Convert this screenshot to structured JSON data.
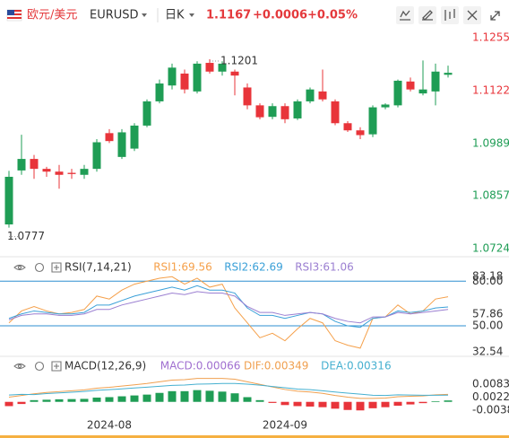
{
  "header": {
    "symbol_cn": "欧元/美元",
    "symbol": "EURUSD",
    "period": "日K",
    "price": "1.1167",
    "change": "+0.0006",
    "change_pct": "+0.05%"
  },
  "chart_data": [
    {
      "type": "candlestick",
      "open": [
        1.0785,
        1.0921,
        1.095,
        1.0925,
        1.0918,
        1.0915,
        1.091,
        1.0925,
        1.1015,
        1.0955,
        1.0976,
        1.1034,
        1.1095,
        1.1135,
        1.1165,
        1.112,
        1.1192,
        1.117,
        1.117,
        1.113,
        1.1085,
        1.1056,
        1.1083,
        1.1052,
        1.1095,
        1.112,
        1.1095,
        1.104,
        1.1022,
        1.1012,
        1.108,
        1.1085,
        1.1145,
        1.1115,
        1.112,
        1.1162
      ],
      "high": [
        1.092,
        1.1011,
        1.096,
        1.093,
        1.0935,
        1.0925,
        1.0935,
        1.1,
        1.1025,
        1.1025,
        1.104,
        1.11,
        1.115,
        1.119,
        1.1175,
        1.1196,
        1.1201,
        1.1196,
        1.1175,
        1.114,
        1.109,
        1.109,
        1.109,
        1.11,
        1.113,
        1.1175,
        1.11,
        1.1045,
        1.103,
        1.1085,
        1.109,
        1.115,
        1.1155,
        1.1198,
        1.119,
        1.1185
      ],
      "low": [
        1.0777,
        1.091,
        1.09,
        1.0905,
        1.0875,
        1.09,
        1.09,
        1.0918,
        1.099,
        1.095,
        1.097,
        1.103,
        1.109,
        1.1125,
        1.1115,
        1.1115,
        1.1165,
        1.116,
        1.111,
        1.1075,
        1.105,
        1.105,
        1.104,
        1.1048,
        1.109,
        1.1095,
        1.1035,
        1.1018,
        1.1,
        1.1005,
        1.1075,
        1.108,
        1.112,
        1.111,
        1.1085,
        1.1155
      ],
      "close": [
        1.0905,
        1.095,
        1.0925,
        1.0918,
        1.091,
        1.0912,
        1.0925,
        1.0992,
        1.0995,
        1.1017,
        1.1034,
        1.1095,
        1.114,
        1.118,
        1.1125,
        1.119,
        1.117,
        1.119,
        1.116,
        1.1085,
        1.1055,
        1.1083,
        1.105,
        1.1095,
        1.1125,
        1.11,
        1.104,
        1.1022,
        1.101,
        1.108,
        1.1087,
        1.1147,
        1.1125,
        1.1125,
        1.117,
        1.1167
      ],
      "up_color": "#1f9d55",
      "down_color": "#e8343a",
      "ylim": [
        1.0706,
        1.1278
      ],
      "yticks": [
        1.0724,
        1.0857,
        1.0989,
        1.1122,
        1.1255
      ],
      "ytick_colors": [
        "#1f9d55",
        "#1f9d55",
        "#1f9d55",
        "#e8343a",
        "#e8343a"
      ],
      "annotations": [
        {
          "value": 1.1201,
          "index": 16
        },
        {
          "value": 1.0777,
          "index": 0
        }
      ]
    },
    {
      "type": "line",
      "title": "RSI(7,14,21)",
      "series": [
        {
          "name": "RSI1:69.56",
          "color": "#f5a04a",
          "values": [
            52,
            60,
            63,
            60,
            58,
            59,
            61,
            70,
            68,
            74,
            78,
            80,
            82,
            83,
            78,
            82,
            76,
            78,
            62,
            52,
            42,
            45,
            40,
            48,
            55,
            52,
            40,
            37,
            35,
            55,
            56,
            64,
            58,
            60,
            68,
            69.56
          ]
        },
        {
          "name": "RSI2:62.69",
          "color": "#3aa0d8",
          "values": [
            55,
            58,
            60,
            59,
            58,
            58,
            59,
            64,
            64,
            67,
            70,
            72,
            74,
            76,
            74,
            77,
            74,
            74,
            72,
            62,
            57,
            57,
            55,
            57,
            59,
            58,
            53,
            50,
            49,
            55,
            56,
            60,
            59,
            60,
            62,
            62.69
          ]
        },
        {
          "name": "RSI3:61.06",
          "color": "#9b7fd1",
          "values": [
            54,
            57,
            58,
            58,
            57,
            57,
            58,
            61,
            61,
            64,
            66,
            68,
            70,
            72,
            71,
            73,
            72,
            72,
            70,
            63,
            59,
            59,
            57,
            58,
            59,
            58,
            55,
            53,
            52,
            56,
            56,
            59,
            58,
            59,
            60,
            61.06
          ]
        }
      ],
      "ylim": [
        32.54,
        83.18
      ],
      "yticks": [
        32.54,
        {
          "value": 50,
          "label": "50.00"
        },
        57.86,
        {
          "value": 80,
          "label": "80.00"
        },
        83.18
      ],
      "ref_lines": [
        80,
        50
      ],
      "ref_color": "#2f8fd0"
    },
    {
      "type": "macd",
      "title": "MACD(12,26,9)",
      "series": [
        {
          "name": "MACD:0.00066",
          "color": "#a06fd0",
          "up_color": "#1f9d55",
          "down_color": "#e8343a",
          "kind": "bar",
          "values": [
            -0.002,
            -0.001,
            0.0008,
            0.001,
            0.0012,
            0.0013,
            0.0014,
            0.002,
            0.0022,
            0.0026,
            0.003,
            0.0034,
            0.0042,
            0.005,
            0.005,
            0.0055,
            0.0052,
            0.0048,
            0.004,
            0.0022,
            0.0008,
            -0.0005,
            -0.0015,
            -0.002,
            -0.0022,
            -0.0025,
            -0.0032,
            -0.0038,
            -0.004,
            -0.003,
            -0.0025,
            -0.0018,
            -0.0012,
            -0.0006,
            0.0003,
            0.00066
          ]
        },
        {
          "name": "DIF:0.00349",
          "color": "#f0a050",
          "kind": "line",
          "values": [
            0.0022,
            0.003,
            0.0038,
            0.0044,
            0.0048,
            0.0052,
            0.0056,
            0.0064,
            0.0068,
            0.0074,
            0.008,
            0.0086,
            0.0094,
            0.0102,
            0.0104,
            0.011,
            0.011,
            0.011,
            0.0106,
            0.0094,
            0.0082,
            0.007,
            0.0058,
            0.005,
            0.0046,
            0.004,
            0.003,
            0.0022,
            0.0016,
            0.0016,
            0.0018,
            0.0024,
            0.0026,
            0.0028,
            0.0033,
            0.00349
          ]
        },
        {
          "name": "DEA:0.00316",
          "color": "#46b0d0",
          "kind": "line",
          "values": [
            0.0032,
            0.0035,
            0.0034,
            0.0039,
            0.0042,
            0.0045,
            0.0049,
            0.0054,
            0.0057,
            0.0061,
            0.0065,
            0.0069,
            0.0073,
            0.0077,
            0.0079,
            0.0083,
            0.0084,
            0.0086,
            0.0086,
            0.0083,
            0.0078,
            0.0072,
            0.0066,
            0.006,
            0.0057,
            0.0052,
            0.0046,
            0.0041,
            0.0036,
            0.0031,
            0.003,
            0.0033,
            0.0032,
            0.0031,
            0.0031,
            0.00316
          ]
        }
      ],
      "ylim": [
        -0.006,
        0.0125
      ],
      "yticks": [
        -0.00382,
        0.00224,
        {
          "value": 0.0083,
          "label": "0.00830"
        }
      ],
      "xticks": [
        {
          "value": 8,
          "label": "2024-08"
        },
        {
          "value": 22,
          "label": "2024-09"
        }
      ]
    }
  ]
}
